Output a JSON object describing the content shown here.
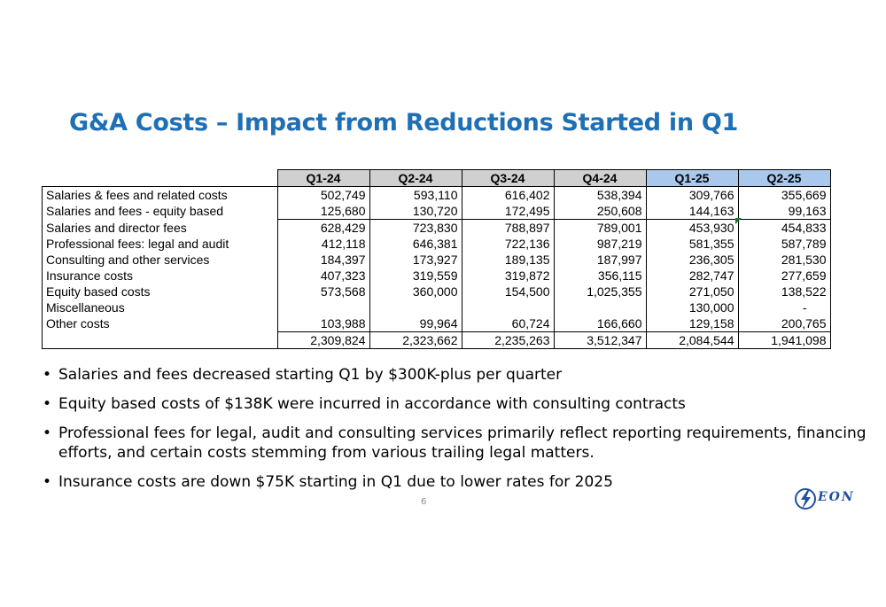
{
  "slide": {
    "title": "G&A Costs – Impact from Reductions Started in Q1",
    "page_number": "6",
    "logo_text": "EON"
  },
  "table": {
    "columns": [
      "Q1-24",
      "Q2-24",
      "Q3-24",
      "Q4-24",
      "Q1-25",
      "Q2-25"
    ],
    "highlight_columns": [
      "Q1-25",
      "Q2-25"
    ],
    "header_bg": "#d0d0d0",
    "highlight_bg": "#a9c8ec",
    "rows": [
      {
        "label": "Salaries & fees and related costs",
        "values": [
          "502,749",
          "593,110",
          "616,402",
          "538,394",
          "309,766",
          "355,669"
        ]
      },
      {
        "label": "Salaries and fees - equity based",
        "values": [
          "125,680",
          "130,720",
          "172,495",
          "250,608",
          "144,163",
          "99,163"
        ]
      },
      {
        "label": "Salaries and director fees",
        "values": [
          "628,429",
          "723,830",
          "788,897",
          "789,001",
          "453,930",
          "454,833"
        ]
      },
      {
        "label": "Professional fees: legal and audit",
        "values": [
          "412,118",
          "646,381",
          "722,136",
          "987,219",
          "581,355",
          "587,789"
        ]
      },
      {
        "label": "Consulting and other services",
        "values": [
          "184,397",
          "173,927",
          "189,135",
          "187,997",
          "236,305",
          "281,530"
        ]
      },
      {
        "label": "Insurance costs",
        "values": [
          "407,323",
          "319,559",
          "319,872",
          "356,115",
          "282,747",
          "277,659"
        ]
      },
      {
        "label": "Equity based costs",
        "values": [
          "573,568",
          "360,000",
          "154,500",
          "1,025,355",
          "271,050",
          "138,522"
        ]
      },
      {
        "label": "Miscellaneous",
        "values": [
          "",
          "",
          "",
          "",
          "130,000",
          "-"
        ]
      },
      {
        "label": "Other costs",
        "values": [
          "103,988",
          "99,964",
          "60,724",
          "166,660",
          "129,158",
          "200,765"
        ]
      }
    ],
    "totals": [
      "2,309,824",
      "2,323,662",
      "2,235,263",
      "3,512,347",
      "2,084,544",
      "1,941,098"
    ]
  },
  "bullets": [
    "Salaries and fees decreased starting Q1 by $300K-plus per quarter",
    "Equity based costs of $138K were incurred in accordance with consulting contracts",
    "Professional fees for legal, audit and consulting services primarily reflect reporting requirements, financing efforts, and certain costs stemming from various trailing legal matters.",
    "Insurance costs are down $75K starting in Q1 due to lower rates for 2025"
  ],
  "colors": {
    "title": "#1f6fb5",
    "logo": "#1f4fa0"
  }
}
